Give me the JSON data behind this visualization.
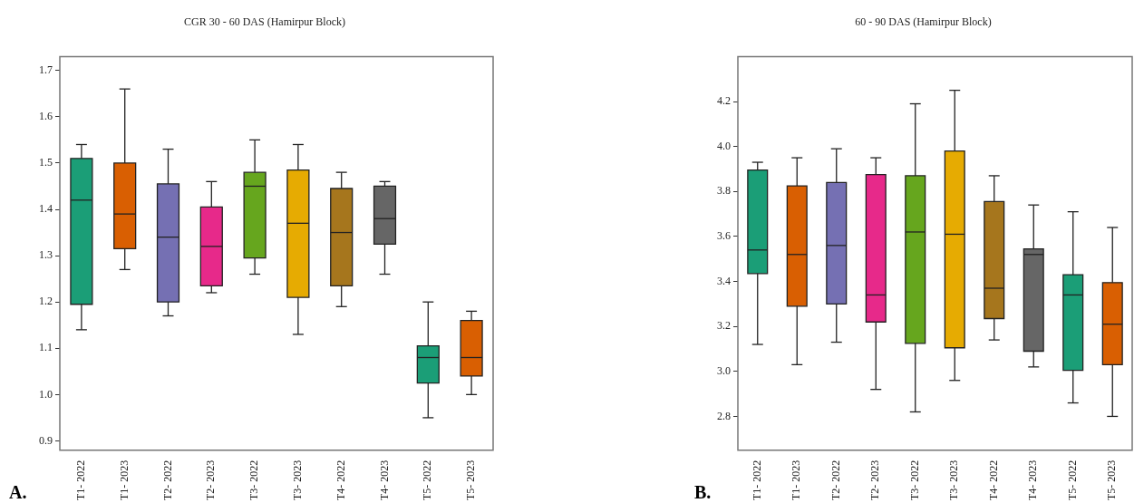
{
  "chart_data": [
    {
      "type": "box",
      "title": "CGR 30 - 60 DAS (Hamirpur Block)",
      "annotations": [
        "A."
      ],
      "categories": [
        "T1- 2022",
        "T1- 2023",
        "T2- 2022",
        "T2- 2023",
        "T3- 2022",
        "T3- 2023",
        "T4- 2022",
        "T4- 2023",
        "T5- 2022",
        "T5- 2023"
      ],
      "colors": [
        "#1b9e77",
        "#d95f02",
        "#7570b3",
        "#e7298a",
        "#66a61e",
        "#e6ab02",
        "#a6761d",
        "#666666",
        "#1b9e77",
        "#d95f02"
      ],
      "ylim": [
        0.88,
        1.73
      ],
      "yticks": [
        0.9,
        {
          "value": 1,
          "label": "1.0"
        },
        1.1,
        1.2,
        1.3,
        1.4,
        1.5,
        1.6,
        1.7
      ],
      "boxes": [
        {
          "low": 1.14,
          "q1": 1.195,
          "median": 1.42,
          "q3": 1.51,
          "high": 1.54
        },
        {
          "low": 1.27,
          "q1": 1.315,
          "median": 1.39,
          "q3": 1.5,
          "high": 1.66
        },
        {
          "low": 1.17,
          "q1": 1.2,
          "median": 1.34,
          "q3": 1.455,
          "high": 1.53
        },
        {
          "low": 1.22,
          "q1": 1.235,
          "median": 1.32,
          "q3": 1.405,
          "high": 1.46
        },
        {
          "low": 1.26,
          "q1": 1.295,
          "median": 1.45,
          "q3": 1.48,
          "high": 1.55
        },
        {
          "low": 1.13,
          "q1": 1.21,
          "median": 1.37,
          "q3": 1.485,
          "high": 1.54
        },
        {
          "low": 1.19,
          "q1": 1.235,
          "median": 1.35,
          "q3": 1.445,
          "high": 1.48
        },
        {
          "low": 1.26,
          "q1": 1.325,
          "median": 1.38,
          "q3": 1.45,
          "high": 1.46
        },
        {
          "low": 0.95,
          "q1": 1.025,
          "median": 1.08,
          "q3": 1.105,
          "high": 1.2
        },
        {
          "low": 1.0,
          "q1": 1.04,
          "median": 1.08,
          "q3": 1.16,
          "high": 1.18
        }
      ]
    },
    {
      "type": "box",
      "title": "60 - 90 DAS (Hamirpur Block)",
      "annotations": [
        "B."
      ],
      "categories": [
        "T1- 2022",
        "T1- 2023",
        "T2- 2022",
        "T2- 2023",
        "T3- 2022",
        "T3- 2023",
        "T4- 2022",
        "T4- 2023",
        "T5- 2022",
        "T5- 2023"
      ],
      "colors": [
        "#1b9e77",
        "#d95f02",
        "#7570b3",
        "#e7298a",
        "#66a61e",
        "#e6ab02",
        "#a6761d",
        "#666666",
        "#1b9e77",
        "#d95f02"
      ],
      "ylim": [
        2.65,
        4.4
      ],
      "yticks": [
        2.8,
        {
          "value": 3,
          "label": "3.0"
        },
        3.2,
        3.4,
        3.6,
        3.8,
        {
          "value": 4,
          "label": "4.0"
        },
        4.2
      ],
      "boxes": [
        {
          "low": 3.12,
          "q1": 3.435,
          "median": 3.54,
          "q3": 3.895,
          "high": 3.93
        },
        {
          "low": 3.03,
          "q1": 3.29,
          "median": 3.52,
          "q3": 3.825,
          "high": 3.95
        },
        {
          "low": 3.13,
          "q1": 3.3,
          "median": 3.56,
          "q3": 3.84,
          "high": 3.99
        },
        {
          "low": 2.92,
          "q1": 3.22,
          "median": 3.34,
          "q3": 3.875,
          "high": 3.95
        },
        {
          "low": 2.82,
          "q1": 3.125,
          "median": 3.62,
          "q3": 3.87,
          "high": 4.19
        },
        {
          "low": 2.96,
          "q1": 3.105,
          "median": 3.61,
          "q3": 3.98,
          "high": 4.25
        },
        {
          "low": 3.14,
          "q1": 3.235,
          "median": 3.37,
          "q3": 3.755,
          "high": 3.87
        },
        {
          "low": 3.02,
          "q1": 3.09,
          "median": 3.52,
          "q3": 3.545,
          "high": 3.74
        },
        {
          "low": 2.86,
          "q1": 3.005,
          "median": 3.34,
          "q3": 3.43,
          "high": 3.71
        },
        {
          "low": 2.8,
          "q1": 3.03,
          "median": 3.21,
          "q3": 3.395,
          "high": 3.64
        }
      ]
    }
  ]
}
